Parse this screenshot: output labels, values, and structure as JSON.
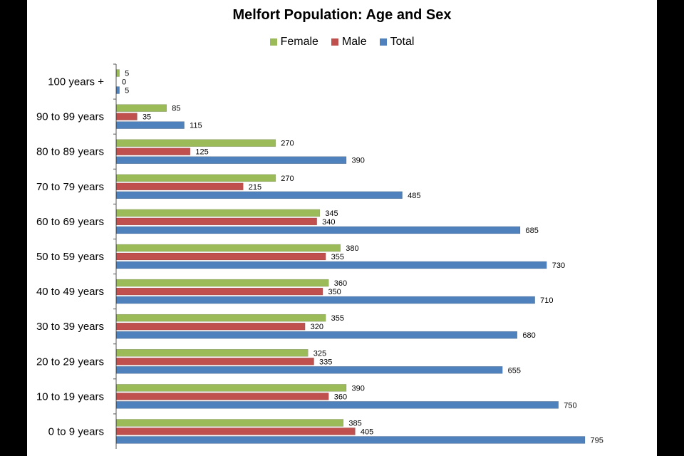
{
  "chart_data": {
    "type": "bar",
    "orientation": "horizontal",
    "title": "Melfort Population: Age and Sex",
    "xlabel": "",
    "ylabel": "",
    "xlim": [
      0,
      900
    ],
    "grid": false,
    "legend_position": "top",
    "categories": [
      "100 years +",
      "90 to 99 years",
      "80 to 89 years",
      "70 to 79 years",
      "60 to 69 years",
      "50 to 59 years",
      "40 to 49 years",
      "30 to 39 years",
      "20 to 29 years",
      "10 to 19 years",
      "0 to 9 years"
    ],
    "series": [
      {
        "name": "Female",
        "color": "#9bbb59",
        "values": [
          5,
          85,
          270,
          270,
          345,
          380,
          360,
          355,
          325,
          390,
          385
        ]
      },
      {
        "name": "Male",
        "color": "#c0504d",
        "values": [
          0,
          35,
          125,
          215,
          340,
          355,
          350,
          320,
          335,
          360,
          405
        ]
      },
      {
        "name": "Total",
        "color": "#4f81bd",
        "values": [
          5,
          115,
          390,
          485,
          685,
          730,
          710,
          680,
          655,
          750,
          795
        ]
      }
    ]
  }
}
